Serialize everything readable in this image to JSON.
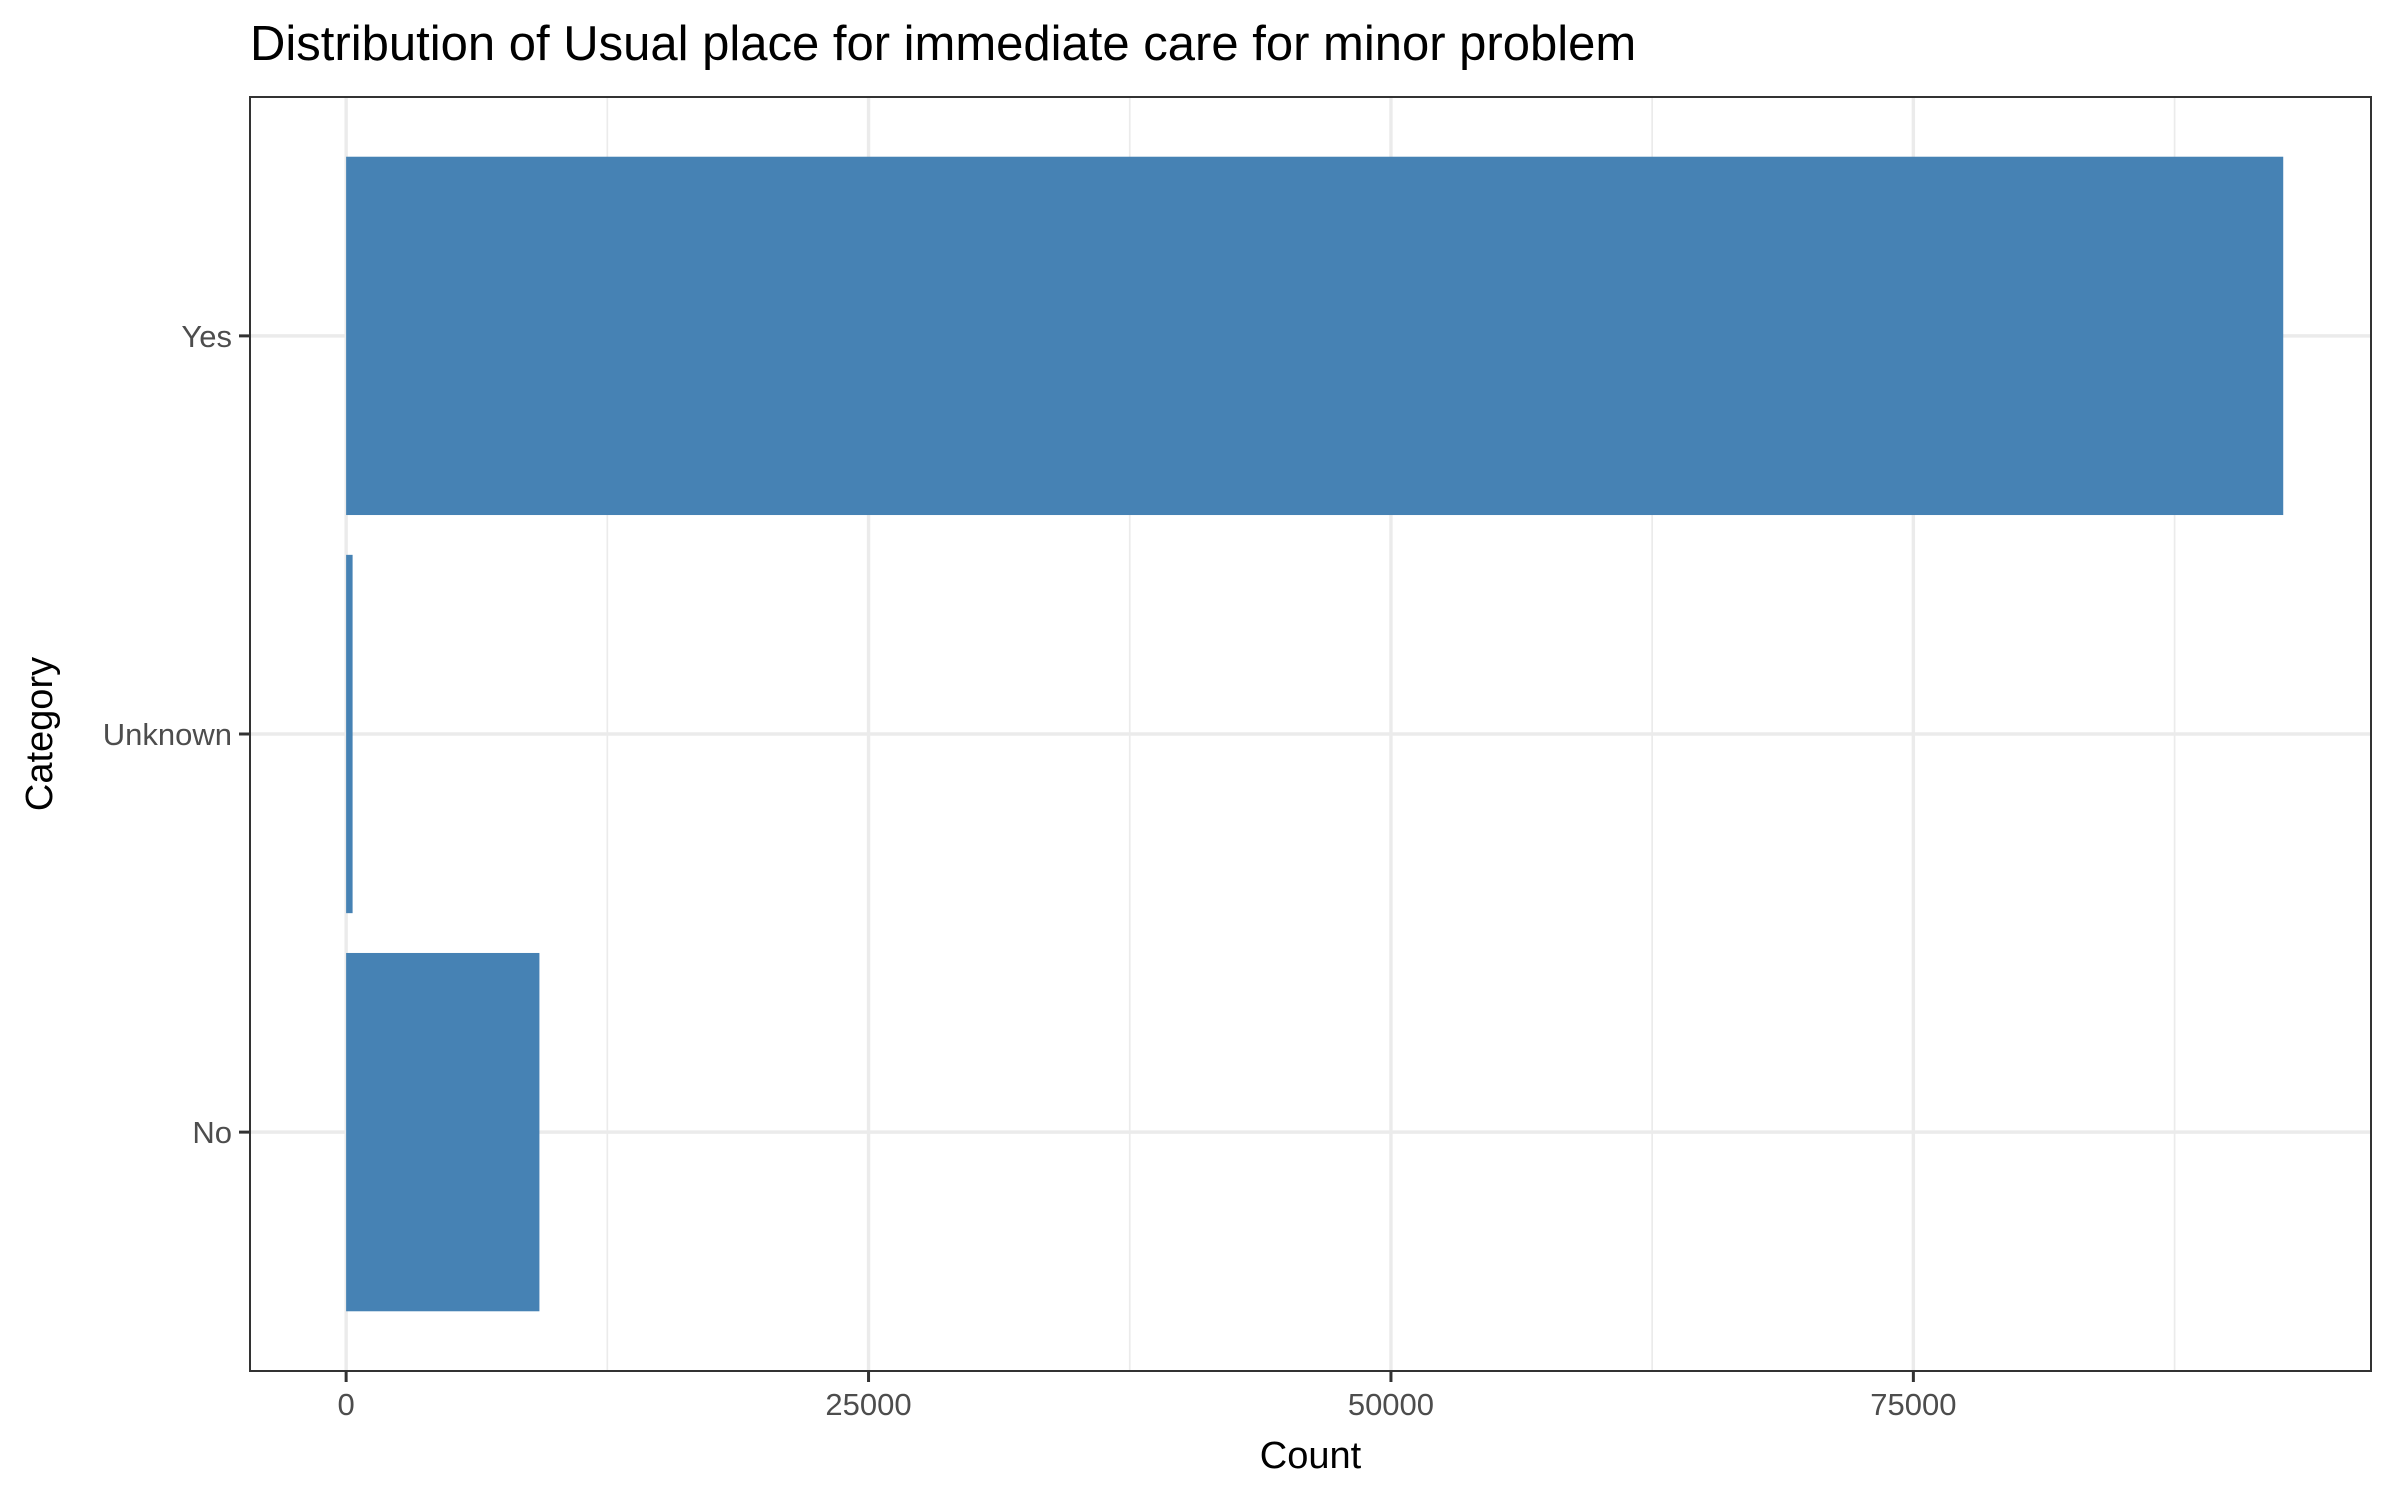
{
  "chart_data": {
    "type": "bar",
    "orientation": "horizontal",
    "title": "Distribution of Usual place for immediate care for minor problem",
    "xlabel": "Count",
    "ylabel": "Category",
    "categories": [
      "No",
      "Unknown",
      "Yes"
    ],
    "values": [
      9250,
      310,
      92700
    ],
    "xlim": [
      -4600,
      96900
    ],
    "xticks": [
      0,
      25000,
      50000,
      75000
    ],
    "xtick_labels": [
      "0",
      "25000",
      "50000",
      "75000"
    ],
    "bar_color": "#4682b4",
    "grid": true,
    "legend": "none",
    "theme": "bw"
  }
}
